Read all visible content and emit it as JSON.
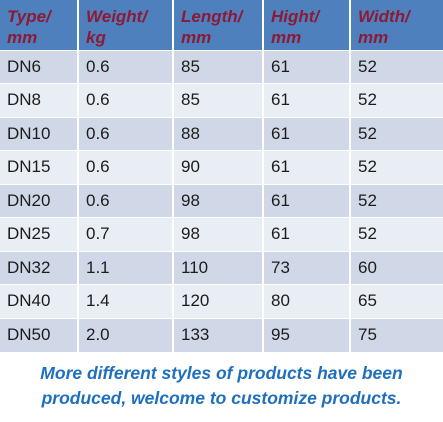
{
  "table": {
    "headers": [
      [
        "Type/",
        "mm"
      ],
      [
        "Weight/",
        "kg"
      ],
      [
        "Length/",
        "mm"
      ],
      [
        "Hight/",
        "mm"
      ],
      [
        "Width/",
        "mm"
      ]
    ],
    "rows": [
      [
        "DN6",
        "0.6",
        "85",
        "61",
        "52"
      ],
      [
        "DN8",
        "0.6",
        "85",
        "61",
        "52"
      ],
      [
        "DN10",
        "0.6",
        "88",
        "61",
        "52"
      ],
      [
        "DN15",
        "0.6",
        "90",
        "61",
        "52"
      ],
      [
        "DN20",
        "0.6",
        "98",
        "61",
        "52"
      ],
      [
        "DN25",
        "0.7",
        "98",
        "61",
        "52"
      ],
      [
        "DN32",
        "1.1",
        "110",
        "73",
        "60"
      ],
      [
        "DN40",
        "1.4",
        "120",
        "80",
        "65"
      ],
      [
        "DN50",
        "2.0",
        "133",
        "95",
        "75"
      ]
    ]
  },
  "note": {
    "line1": "More different styles of products have been",
    "line2": "produced, welcome to customize products."
  },
  "colors": {
    "header_bg": "#4e80bd",
    "header_text": "#8b1a36",
    "row_band_dark": "#d0d8e8",
    "row_band_light": "#e9edf4",
    "note_text": "#1f6fbf"
  }
}
